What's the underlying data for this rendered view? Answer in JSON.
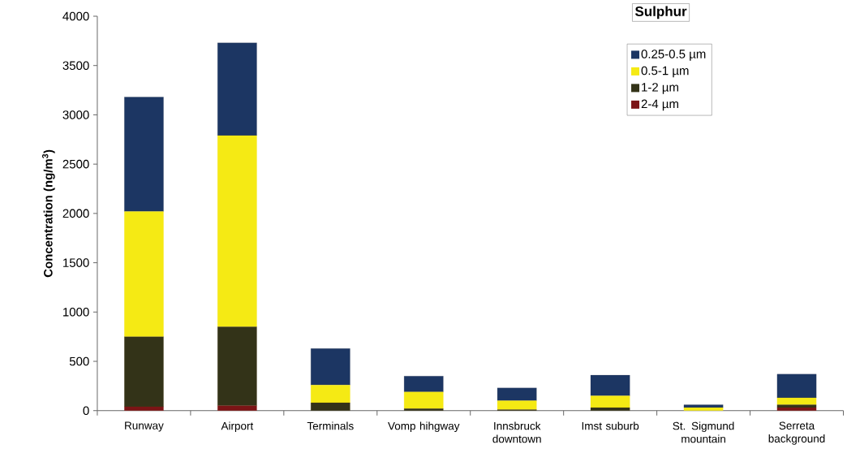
{
  "chart_data": {
    "type": "bar",
    "stacked": true,
    "title": "Sulphur",
    "ylabel": "Concentration (ng/m$^{3}$)",
    "categories": [
      "Runway",
      "Airport",
      "Terminals",
      "Vomp hihgway",
      "Innsbruck downtown",
      "Imst suburb",
      "St. Sigmund mountain",
      "Serreta background"
    ],
    "series": [
      {
        "name": "2-4 µm",
        "color": "#7b1416",
        "values": [
          40,
          50,
          0,
          0,
          0,
          0,
          0,
          30
        ]
      },
      {
        "name": "1-2 µm",
        "color": "#333318",
        "values": [
          710,
          800,
          80,
          20,
          10,
          30,
          null,
          30
        ]
      },
      {
        "name": "0.5-1 µm",
        "color": "#f5ea14",
        "values": [
          1270,
          1940,
          180,
          170,
          90,
          120,
          30,
          70
        ]
      },
      {
        "name": "0.25-0.5 µm",
        "color": "#1c3663",
        "values": [
          1160,
          940,
          370,
          160,
          130,
          210,
          30,
          240
        ]
      }
    ],
    "ylim": [
      0,
      4000
    ],
    "yticks": [
      0,
      500,
      1000,
      1500,
      2000,
      2500,
      3000,
      3500,
      4000
    ],
    "grid": false,
    "legend": "top right"
  }
}
